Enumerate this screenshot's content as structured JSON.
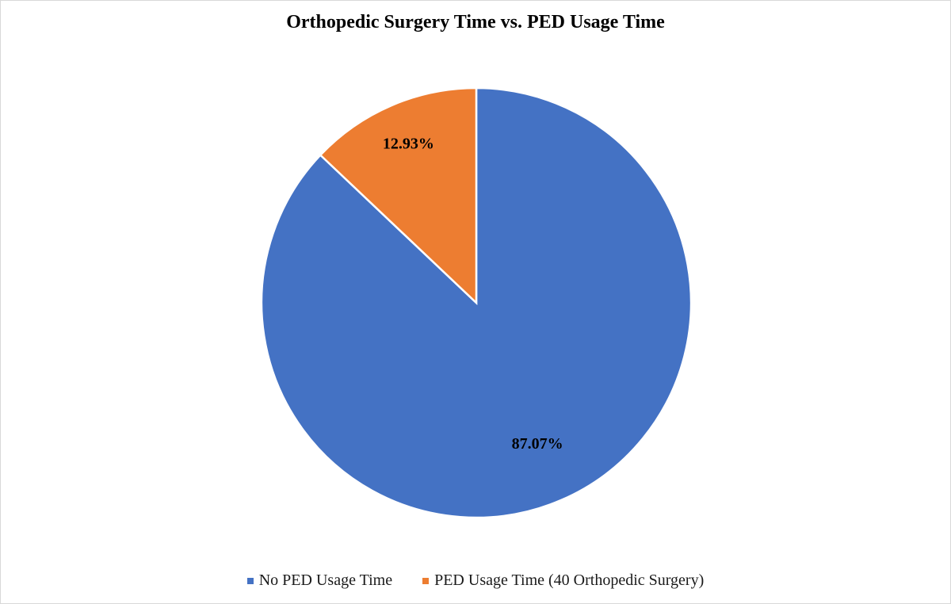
{
  "chart_data": {
    "type": "pie",
    "title": "Orthopedic Surgery Time vs. PED Usage Time",
    "slices": [
      {
        "name": "No PED Usage Time",
        "value": 87.07,
        "label": "87.07%",
        "color": "#4472C4"
      },
      {
        "name": "PED Usage Time (40 Orthopedic Surgery)",
        "value": 12.93,
        "label": "12.93%",
        "color": "#ED7D31"
      }
    ],
    "legend_position": "bottom"
  }
}
